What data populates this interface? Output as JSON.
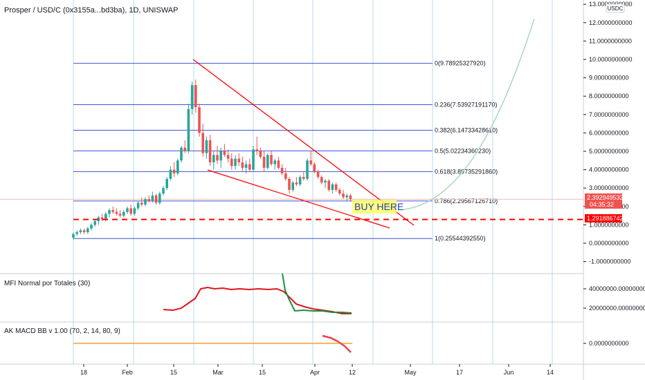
{
  "header": {
    "title": "Prosper / USD/C (0x3155a...bd3ba), 1D, UNISWAP",
    "currency_badge": "USDC"
  },
  "colors": {
    "up": "#26a69a",
    "down": "#ef5350",
    "fib": "#3f51d6",
    "trendline": "#ff0000",
    "projection": "#a7d8c0",
    "mfi_red": "#e0131b",
    "mfi_green": "#1a8d3b",
    "macd_orange": "#ff9b32",
    "vgrid": "#b3dcea"
  },
  "chart_data": [
    {
      "type": "candlestick",
      "title": "Prosper / USD/C (0x3155a...bd3ba), 1D, UNISWAP",
      "ylim": [
        -1.7,
        13.0
      ],
      "y_ticks": [
        "13.0000000000",
        "12.0000000000",
        "11.0000000000",
        "10.0000000000",
        "9.0000000000",
        "8.0000000000",
        "7.0000000000",
        "6.0000000000",
        "5.0000000000",
        "4.0000000000",
        "3.0000000000",
        "2.0000000000",
        "1.0000000000",
        "0.0000000000",
        "-1.0000000000"
      ],
      "x_ticks": [
        "18",
        "Feb",
        "15",
        "Mar",
        "15",
        "Apr",
        "12",
        "May",
        "17",
        "Jun",
        "14"
      ],
      "candles_ohlc": [
        [
          0.3,
          0.6,
          0.2,
          0.5
        ],
        [
          0.5,
          0.7,
          0.4,
          0.6
        ],
        [
          0.6,
          0.8,
          0.5,
          0.7
        ],
        [
          0.7,
          0.8,
          0.5,
          0.6
        ],
        [
          0.6,
          0.9,
          0.5,
          0.8
        ],
        [
          0.8,
          1.1,
          0.7,
          1.0
        ],
        [
          1.0,
          1.3,
          0.9,
          1.2
        ],
        [
          1.2,
          1.5,
          1.0,
          1.4
        ],
        [
          1.4,
          1.6,
          1.2,
          1.3
        ],
        [
          1.3,
          1.7,
          1.2,
          1.6
        ],
        [
          1.6,
          1.9,
          1.4,
          1.8
        ],
        [
          1.8,
          2.0,
          1.6,
          1.7
        ],
        [
          1.7,
          1.9,
          1.5,
          1.6
        ],
        [
          1.6,
          1.8,
          1.4,
          1.5
        ],
        [
          1.5,
          1.8,
          1.4,
          1.7
        ],
        [
          1.7,
          2.0,
          1.6,
          1.9
        ],
        [
          1.9,
          2.1,
          1.5,
          1.6
        ],
        [
          1.6,
          2.0,
          1.5,
          1.9
        ],
        [
          1.9,
          2.3,
          1.8,
          2.2
        ],
        [
          2.2,
          2.5,
          2.0,
          2.1
        ],
        [
          2.1,
          2.5,
          2.0,
          2.4
        ],
        [
          2.4,
          2.6,
          2.2,
          2.3
        ],
        [
          2.3,
          2.8,
          2.2,
          2.6
        ],
        [
          2.6,
          2.7,
          2.1,
          2.2
        ],
        [
          2.2,
          2.8,
          2.1,
          2.7
        ],
        [
          2.7,
          3.1,
          2.6,
          3.0
        ],
        [
          3.0,
          3.6,
          2.9,
          3.5
        ],
        [
          3.5,
          4.2,
          3.4,
          4.0
        ],
        [
          4.0,
          4.4,
          3.6,
          3.8
        ],
        [
          3.8,
          4.6,
          3.7,
          4.5
        ],
        [
          4.5,
          5.3,
          4.4,
          5.2
        ],
        [
          5.2,
          5.6,
          4.9,
          5.0
        ],
        [
          5.0,
          7.6,
          4.9,
          7.3
        ],
        [
          7.3,
          8.8,
          7.0,
          8.6
        ],
        [
          8.6,
          8.9,
          7.1,
          7.4
        ],
        [
          7.4,
          7.6,
          5.8,
          6.0
        ],
        [
          6.0,
          6.5,
          4.7,
          4.9
        ],
        [
          4.9,
          5.8,
          4.6,
          5.6
        ],
        [
          5.6,
          5.9,
          4.2,
          4.4
        ],
        [
          4.4,
          5.0,
          4.0,
          4.8
        ],
        [
          4.8,
          5.3,
          4.3,
          4.5
        ],
        [
          4.5,
          5.2,
          4.1,
          5.0
        ],
        [
          5.0,
          5.4,
          4.7,
          4.8
        ],
        [
          4.8,
          5.1,
          4.4,
          4.6
        ],
        [
          4.6,
          4.9,
          4.0,
          4.2
        ],
        [
          4.2,
          4.8,
          4.0,
          4.6
        ],
        [
          4.6,
          4.9,
          4.2,
          4.4
        ],
        [
          4.4,
          4.7,
          3.9,
          4.1
        ],
        [
          4.1,
          4.5,
          3.8,
          4.3
        ],
        [
          4.3,
          4.6,
          3.9,
          4.0
        ],
        [
          4.0,
          5.3,
          3.9,
          5.1
        ],
        [
          5.1,
          5.8,
          4.8,
          5.0
        ],
        [
          5.0,
          5.2,
          4.6,
          4.7
        ],
        [
          4.7,
          5.0,
          3.9,
          4.1
        ],
        [
          4.1,
          4.9,
          4.0,
          4.8
        ],
        [
          4.8,
          5.0,
          4.2,
          4.3
        ],
        [
          4.3,
          4.6,
          4.0,
          4.5
        ],
        [
          4.5,
          4.7,
          4.0,
          4.1
        ],
        [
          4.1,
          4.3,
          3.7,
          3.8
        ],
        [
          3.8,
          4.1,
          3.4,
          3.5
        ],
        [
          3.5,
          3.6,
          2.7,
          2.9
        ],
        [
          2.9,
          3.4,
          2.8,
          3.3
        ],
        [
          3.3,
          3.6,
          3.1,
          3.2
        ],
        [
          3.2,
          3.7,
          3.1,
          3.6
        ],
        [
          3.6,
          3.9,
          3.4,
          3.5
        ],
        [
          3.5,
          4.6,
          3.4,
          4.5
        ],
        [
          4.5,
          5.0,
          4.2,
          4.3
        ],
        [
          4.3,
          4.4,
          3.8,
          3.9
        ],
        [
          3.9,
          4.0,
          3.5,
          3.6
        ],
        [
          3.6,
          3.7,
          3.2,
          3.3
        ],
        [
          3.3,
          3.5,
          3.0,
          3.4
        ],
        [
          3.4,
          3.5,
          2.8,
          2.9
        ],
        [
          2.9,
          3.3,
          2.7,
          3.2
        ],
        [
          3.2,
          3.3,
          2.8,
          2.9
        ],
        [
          2.9,
          3.0,
          2.6,
          2.7
        ],
        [
          2.7,
          2.9,
          2.4,
          2.5
        ],
        [
          2.5,
          2.7,
          2.3,
          2.6
        ],
        [
          2.6,
          2.7,
          2.3,
          2.4
        ]
      ],
      "fib_levels": [
        {
          "label": "0(9.78925327920)",
          "value": 9.7892532792
        },
        {
          "label": "0.236(7.53927191170)",
          "value": 7.5392719117
        },
        {
          "label": "0.382(6.14733428610)",
          "value": 6.1473342861
        },
        {
          "label": "0.5(5.02234360230)",
          "value": 5.0223436023
        },
        {
          "label": "0.618(3.89735291860)",
          "value": 3.8973529186
        },
        {
          "label": "0.786(2.29567126710)",
          "value": 2.2956712671
        },
        {
          "label": "1(0.25544392550)",
          "value": 0.2554439255
        }
      ],
      "annotation": "BUY HERE",
      "dashed_level": 1.2918867426,
      "price_badge": {
        "value": "2.3929495328",
        "countdown": "04:35:32"
      },
      "level_badge": "1.2918867426"
    },
    {
      "type": "line",
      "title": "MFI Normal por Totales (30)",
      "y_ticks": [
        "40000000.0000000000",
        "20000000.0000000000"
      ],
      "ylim": [
        10000000,
        52000000
      ]
    },
    {
      "type": "line",
      "title": "AK MACD BB v 1.00 (70, 2, 14, 80, 9)",
      "y_ticks": [
        "0.0000000000"
      ],
      "ylim": [
        -1,
        1
      ]
    }
  ]
}
